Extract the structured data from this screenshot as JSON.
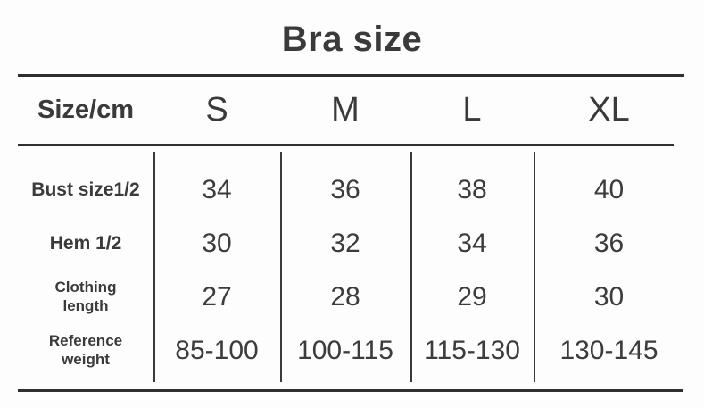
{
  "title": "Bra size",
  "colors": {
    "text": "#3a3a3a",
    "line": "#2f2f2f",
    "background": "#fdfdfd"
  },
  "table": {
    "corner_header": "Size/cm",
    "columns": [
      "S",
      "M",
      "L",
      "XL"
    ],
    "rows": [
      {
        "label_lines": [
          "Bust size1/2"
        ],
        "values": [
          "34",
          "36",
          "38",
          "40"
        ]
      },
      {
        "label_lines": [
          "Hem 1/2"
        ],
        "values": [
          "30",
          "32",
          "34",
          "36"
        ]
      },
      {
        "label_lines": [
          "Clothing",
          "length"
        ],
        "values": [
          "27",
          "28",
          "29",
          "30"
        ]
      },
      {
        "label_lines": [
          "Reference",
          "weight"
        ],
        "values": [
          "85-100",
          "100-115",
          "115-130",
          "130-145"
        ]
      }
    ]
  },
  "chart_data": {
    "type": "table",
    "title": "Bra size",
    "unit": "cm",
    "columns": [
      "Size/cm",
      "S",
      "M",
      "L",
      "XL"
    ],
    "rows": [
      [
        "Bust size1/2",
        "34",
        "36",
        "38",
        "40"
      ],
      [
        "Hem 1/2",
        "30",
        "32",
        "34",
        "36"
      ],
      [
        "Clothing length",
        "27",
        "28",
        "29",
        "30"
      ],
      [
        "Reference weight",
        "85-100",
        "100-115",
        "115-130",
        "130-145"
      ]
    ]
  }
}
